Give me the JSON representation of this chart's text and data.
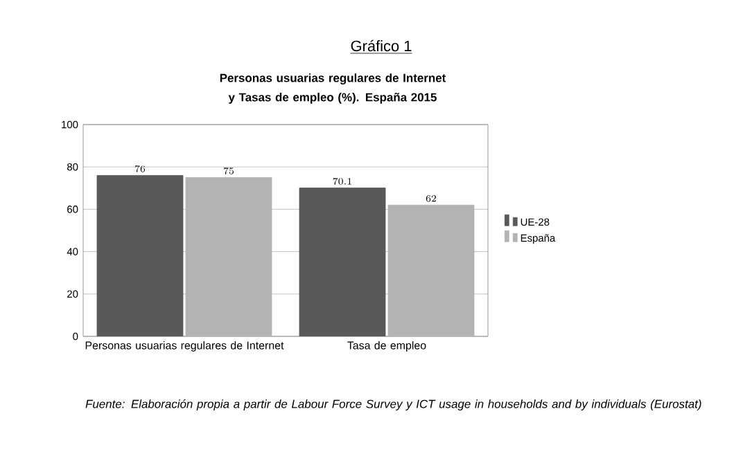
{
  "chart_data": {
    "type": "bar",
    "title": "Gráfico 1",
    "subtitle": "Personas usuarias regulares de Internet y Tasas de empleo (%). España 2015",
    "categories": [
      "Personas usuarias regulares de Internet",
      "Tasa de empleo"
    ],
    "series": [
      {
        "name": "UE-28",
        "color": "#595959",
        "values": [
          76,
          70.1
        ]
      },
      {
        "name": "España",
        "color": "#b3b3b3",
        "values": [
          75,
          62
        ]
      }
    ],
    "ylim": [
      0,
      100
    ],
    "yticks": [
      0,
      20,
      40,
      60,
      80,
      100
    ],
    "grid": "y",
    "legend": "right",
    "data_labels": true,
    "annotations": [
      "Fuente: Elaboración propia a partir de Labour Force Survey y ICT usage in households and by individuals (Eurostat)"
    ]
  }
}
